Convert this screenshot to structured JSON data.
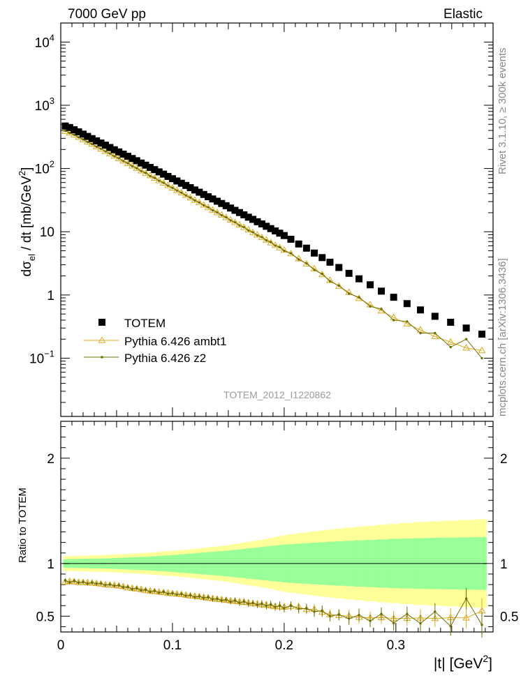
{
  "header": {
    "left": "7000 GeV pp",
    "right": "Elastic"
  },
  "side_labels": {
    "rivet": "Rivet 3.1.10, ≥ 300k events",
    "mcplots": "mcplots.cern.ch [arXiv:1306.3436]"
  },
  "watermark": "TOTEM_2012_I1220862",
  "colors": {
    "data": "#000000",
    "ambt1": "#dcaa1e",
    "z2": "#6e6e00",
    "band_outer": "#ffff99",
    "band_inner": "#99ff99"
  },
  "chart_data": [
    {
      "type": "scatter",
      "ylabel": "dσel / dt [mb/GeV²]",
      "yscale": "log",
      "ylim": [
        0.012,
        20000
      ],
      "xlim": [
        0,
        0.387
      ],
      "yticks": [
        {
          "v": 10000,
          "base": "10",
          "exp": "4"
        },
        {
          "v": 1000,
          "base": "10",
          "exp": "3"
        },
        {
          "v": 100,
          "base": "10",
          "exp": "2"
        },
        {
          "v": 10,
          "base": "10",
          "exp": ""
        },
        {
          "v": 1,
          "base": "1",
          "exp": ""
        },
        {
          "v": 0.1,
          "base": "10",
          "exp": "−1"
        }
      ],
      "legend": [
        {
          "label": "TOTEM"
        },
        {
          "label": "Pythia 6.426 ambt1"
        },
        {
          "label": "Pythia 6.426 z2"
        }
      ],
      "series": [
        {
          "name": "TOTEM",
          "x": [
            0.004,
            0.008,
            0.012,
            0.016,
            0.02,
            0.024,
            0.028,
            0.032,
            0.036,
            0.04,
            0.044,
            0.048,
            0.052,
            0.056,
            0.06,
            0.064,
            0.068,
            0.072,
            0.076,
            0.08,
            0.084,
            0.088,
            0.092,
            0.096,
            0.1,
            0.104,
            0.108,
            0.112,
            0.116,
            0.12,
            0.124,
            0.128,
            0.132,
            0.136,
            0.14,
            0.144,
            0.148,
            0.152,
            0.156,
            0.16,
            0.164,
            0.168,
            0.172,
            0.176,
            0.18,
            0.184,
            0.188,
            0.192,
            0.196,
            0.2,
            0.206,
            0.213,
            0.22,
            0.227,
            0.234,
            0.241,
            0.249,
            0.258,
            0.267,
            0.277,
            0.287,
            0.298,
            0.31,
            0.322,
            0.335,
            0.349,
            0.363,
            0.377
          ],
          "y": [
            470,
            445,
            410,
            380,
            350,
            322,
            297,
            274,
            253,
            234,
            215,
            198,
            183,
            169,
            156,
            144,
            133,
            122,
            113,
            104,
            96,
            88.5,
            81.5,
            75,
            69,
            63.5,
            58.5,
            54,
            49.8,
            45.8,
            42.2,
            38.9,
            35.8,
            33,
            30.4,
            28,
            25.8,
            23.7,
            21.8,
            20.1,
            18.5,
            17,
            15.7,
            14.4,
            13.3,
            12.2,
            11.2,
            10.3,
            9.5,
            8.7,
            7.6,
            6.4,
            5.5,
            4.6,
            3.9,
            3.3,
            2.72,
            2.2,
            1.8,
            1.45,
            1.15,
            0.92,
            0.73,
            0.58,
            0.46,
            0.37,
            0.3,
            0.24
          ]
        },
        {
          "name": "Pythia 6.426 ambt1",
          "x": [
            0.004,
            0.008,
            0.012,
            0.016,
            0.02,
            0.024,
            0.028,
            0.032,
            0.036,
            0.04,
            0.044,
            0.048,
            0.052,
            0.056,
            0.06,
            0.064,
            0.068,
            0.072,
            0.076,
            0.08,
            0.084,
            0.088,
            0.092,
            0.096,
            0.1,
            0.104,
            0.108,
            0.112,
            0.116,
            0.12,
            0.124,
            0.128,
            0.132,
            0.136,
            0.14,
            0.144,
            0.148,
            0.152,
            0.156,
            0.16,
            0.164,
            0.168,
            0.172,
            0.176,
            0.18,
            0.184,
            0.188,
            0.192,
            0.196,
            0.2,
            0.206,
            0.213,
            0.22,
            0.227,
            0.234,
            0.241,
            0.249,
            0.258,
            0.267,
            0.277,
            0.287,
            0.298,
            0.31,
            0.322,
            0.335,
            0.349,
            0.363,
            0.377
          ],
          "y": [
            387.4,
            369,
            339,
            312,
            287,
            263,
            242,
            222,
            204,
            187,
            171,
            157,
            144,
            132,
            120,
            110,
            101,
            92,
            84,
            77,
            70.5,
            64.5,
            59,
            54,
            49.3,
            45.1,
            41.3,
            37.8,
            34.5,
            31.6,
            28.9,
            26.4,
            24.1,
            22,
            20.1,
            18.4,
            16.8,
            15.3,
            14,
            12.8,
            11.7,
            10.7,
            9.7,
            8.9,
            8.1,
            7.4,
            6.7,
            6.1,
            5.6,
            5.1,
            4.5,
            3.75,
            3.1,
            2.6,
            2.1,
            1.7,
            1.38,
            1.1,
            0.88,
            0.7,
            0.56,
            0.44,
            0.35,
            0.28,
            0.22,
            0.18,
            0.145,
            0.132
          ]
        },
        {
          "name": "Pythia 6.426 z2",
          "x": [
            0.004,
            0.008,
            0.012,
            0.016,
            0.02,
            0.024,
            0.028,
            0.032,
            0.036,
            0.04,
            0.044,
            0.048,
            0.052,
            0.056,
            0.06,
            0.064,
            0.068,
            0.072,
            0.076,
            0.08,
            0.084,
            0.088,
            0.092,
            0.096,
            0.1,
            0.104,
            0.108,
            0.112,
            0.116,
            0.12,
            0.124,
            0.128,
            0.132,
            0.136,
            0.14,
            0.144,
            0.148,
            0.152,
            0.156,
            0.16,
            0.164,
            0.168,
            0.172,
            0.176,
            0.18,
            0.184,
            0.188,
            0.192,
            0.196,
            0.2,
            0.206,
            0.213,
            0.22,
            0.227,
            0.234,
            0.241,
            0.249,
            0.258,
            0.267,
            0.277,
            0.287,
            0.298,
            0.31,
            0.322,
            0.335,
            0.349,
            0.363,
            0.377
          ],
          "y": [
            395,
            365,
            342,
            311,
            288,
            262,
            243,
            221,
            205,
            186,
            172,
            156,
            145,
            131,
            121,
            109,
            101,
            91,
            85,
            76,
            71,
            64,
            59.5,
            53.5,
            49.5,
            44.8,
            41.5,
            37.5,
            34.7,
            31.2,
            29,
            26.2,
            24.3,
            21.8,
            20.2,
            18.2,
            16.9,
            15.1,
            14.1,
            12.6,
            11.8,
            10.5,
            9.8,
            8.75,
            8.2,
            7.3,
            6.85,
            6.05,
            5.7,
            5,
            4.55,
            3.65,
            3.15,
            2.5,
            2.15,
            1.65,
            1.4,
            1.05,
            0.92,
            0.66,
            0.6,
            0.4,
            0.38,
            0.25,
            0.25,
            0.15,
            0.2,
            0.1
          ]
        }
      ]
    },
    {
      "type": "scatter",
      "ylabel": "Ratio to TOTEM",
      "xlabel": "|t| [GeV²]",
      "xlim": [
        0,
        0.387
      ],
      "ylim": [
        0.35,
        2.35
      ],
      "xticks": [
        0,
        0.1,
        0.2,
        0.3
      ],
      "yticks": [
        0.5,
        1,
        2
      ],
      "series": [
        {
          "name": "Pythia 6.426 ambt1",
          "x": [
            0.004,
            0.008,
            0.012,
            0.016,
            0.02,
            0.024,
            0.028,
            0.032,
            0.036,
            0.04,
            0.044,
            0.048,
            0.052,
            0.056,
            0.06,
            0.064,
            0.068,
            0.072,
            0.076,
            0.08,
            0.084,
            0.088,
            0.092,
            0.096,
            0.1,
            0.104,
            0.108,
            0.112,
            0.116,
            0.12,
            0.124,
            0.128,
            0.132,
            0.136,
            0.14,
            0.144,
            0.148,
            0.152,
            0.156,
            0.16,
            0.164,
            0.168,
            0.172,
            0.176,
            0.18,
            0.184,
            0.188,
            0.192,
            0.196,
            0.2,
            0.206,
            0.213,
            0.22,
            0.227,
            0.234,
            0.241,
            0.249,
            0.258,
            0.267,
            0.277,
            0.287,
            0.298,
            0.31,
            0.322,
            0.335,
            0.349,
            0.363,
            0.377
          ],
          "y": [
            0.824,
            0.83,
            0.826,
            0.821,
            0.82,
            0.817,
            0.815,
            0.81,
            0.806,
            0.799,
            0.795,
            0.793,
            0.787,
            0.781,
            0.769,
            0.764,
            0.759,
            0.754,
            0.743,
            0.74,
            0.734,
            0.729,
            0.724,
            0.72,
            0.714,
            0.71,
            0.706,
            0.7,
            0.693,
            0.69,
            0.685,
            0.679,
            0.673,
            0.667,
            0.661,
            0.657,
            0.651,
            0.646,
            0.642,
            0.637,
            0.632,
            0.629,
            0.618,
            0.618,
            0.609,
            0.607,
            0.598,
            0.592,
            0.589,
            0.586,
            0.592,
            0.586,
            0.564,
            0.565,
            0.538,
            0.515,
            0.507,
            0.5,
            0.489,
            0.483,
            0.487,
            0.478,
            0.479,
            0.483,
            0.478,
            0.486,
            0.483,
            0.55
          ],
          "err": [
            0.02,
            0.02,
            0.02,
            0.02,
            0.02,
            0.02,
            0.02,
            0.02,
            0.02,
            0.02,
            0.02,
            0.02,
            0.02,
            0.02,
            0.02,
            0.02,
            0.02,
            0.02,
            0.02,
            0.02,
            0.02,
            0.02,
            0.02,
            0.02,
            0.02,
            0.02,
            0.02,
            0.02,
            0.025,
            0.025,
            0.025,
            0.025,
            0.025,
            0.025,
            0.025,
            0.025,
            0.025,
            0.025,
            0.03,
            0.03,
            0.03,
            0.03,
            0.03,
            0.03,
            0.035,
            0.035,
            0.035,
            0.035,
            0.04,
            0.04,
            0.04,
            0.045,
            0.045,
            0.05,
            0.05,
            0.05,
            0.05,
            0.06,
            0.06,
            0.06,
            0.06,
            0.07,
            0.07,
            0.08,
            0.08,
            0.09,
            0.1,
            0.12
          ]
        },
        {
          "name": "Pythia 6.426 z2",
          "x": [
            0.004,
            0.008,
            0.012,
            0.016,
            0.02,
            0.024,
            0.028,
            0.032,
            0.036,
            0.04,
            0.044,
            0.048,
            0.052,
            0.056,
            0.06,
            0.064,
            0.068,
            0.072,
            0.076,
            0.08,
            0.084,
            0.088,
            0.092,
            0.096,
            0.1,
            0.104,
            0.108,
            0.112,
            0.116,
            0.12,
            0.124,
            0.128,
            0.132,
            0.136,
            0.14,
            0.144,
            0.148,
            0.152,
            0.156,
            0.16,
            0.164,
            0.168,
            0.172,
            0.176,
            0.18,
            0.184,
            0.188,
            0.192,
            0.196,
            0.2,
            0.206,
            0.213,
            0.22,
            0.227,
            0.234,
            0.241,
            0.249,
            0.258,
            0.267,
            0.277,
            0.287,
            0.298,
            0.31,
            0.322,
            0.335,
            0.349,
            0.363,
            0.377
          ],
          "y": [
            0.84,
            0.82,
            0.835,
            0.818,
            0.823,
            0.81,
            0.818,
            0.807,
            0.81,
            0.795,
            0.8,
            0.788,
            0.792,
            0.775,
            0.776,
            0.757,
            0.765,
            0.746,
            0.75,
            0.731,
            0.74,
            0.723,
            0.73,
            0.713,
            0.717,
            0.705,
            0.709,
            0.694,
            0.697,
            0.681,
            0.687,
            0.673,
            0.679,
            0.661,
            0.664,
            0.65,
            0.655,
            0.637,
            0.647,
            0.627,
            0.638,
            0.618,
            0.624,
            0.607,
            0.617,
            0.598,
            0.612,
            0.587,
            0.6,
            0.575,
            0.6,
            0.57,
            0.573,
            0.543,
            0.551,
            0.5,
            0.515,
            0.477,
            0.511,
            0.455,
            0.522,
            0.435,
            0.521,
            0.431,
            0.543,
            0.405,
            0.667,
            0.417
          ],
          "err": [
            0.02,
            0.02,
            0.02,
            0.02,
            0.02,
            0.02,
            0.02,
            0.02,
            0.02,
            0.02,
            0.02,
            0.02,
            0.02,
            0.02,
            0.02,
            0.02,
            0.02,
            0.02,
            0.02,
            0.02,
            0.02,
            0.02,
            0.02,
            0.02,
            0.02,
            0.02,
            0.02,
            0.02,
            0.025,
            0.025,
            0.025,
            0.025,
            0.025,
            0.025,
            0.025,
            0.025,
            0.025,
            0.025,
            0.03,
            0.03,
            0.03,
            0.03,
            0.03,
            0.03,
            0.035,
            0.035,
            0.035,
            0.035,
            0.04,
            0.04,
            0.04,
            0.045,
            0.045,
            0.05,
            0.05,
            0.05,
            0.05,
            0.06,
            0.06,
            0.06,
            0.06,
            0.07,
            0.07,
            0.08,
            0.08,
            0.09,
            0.1,
            0.12
          ]
        }
      ],
      "band_inner": [
        0.04,
        0.044,
        0.048,
        0.056,
        0.064,
        0.075,
        0.09,
        0.105,
        0.12,
        0.14,
        0.16,
        0.18,
        0.2,
        0.22,
        0.24,
        0.25
      ],
      "band_outer": [
        0.07,
        0.075,
        0.08,
        0.09,
        0.1,
        0.115,
        0.13,
        0.15,
        0.17,
        0.2,
        0.23,
        0.27,
        0.31,
        0.35,
        0.39,
        0.42
      ]
    }
  ]
}
